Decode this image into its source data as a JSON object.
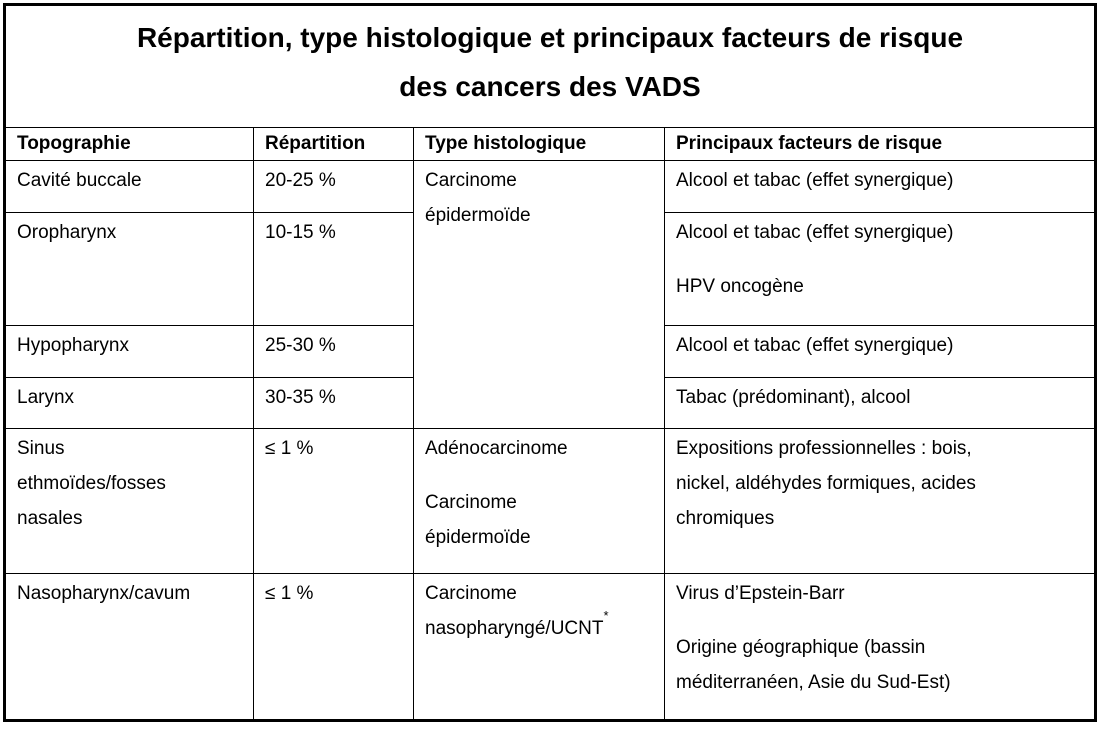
{
  "title": {
    "lines": [
      "Répartition, type histologique et principaux facteurs de risque",
      "des cancers des VADS"
    ]
  },
  "table": {
    "headers": [
      "Topographie",
      "Répartition",
      "Type histologique",
      "Principaux facteurs de risque"
    ],
    "rows": [
      {
        "topography": [
          [
            "Cavité buccale"
          ]
        ],
        "repartition": "20-25 %",
        "histology": [
          [
            "Carcinome",
            "épidermoïde"
          ]
        ],
        "risks": [
          [
            "Alcool et tabac (effet synergique)"
          ]
        ]
      },
      {
        "topography": [
          [
            "Oropharynx"
          ]
        ],
        "repartition": "10-15 %",
        "risks": [
          [
            "Alcool et tabac (effet synergique)"
          ],
          [
            "HPV oncogène"
          ]
        ]
      },
      {
        "topography": [
          [
            "Hypopharynx"
          ]
        ],
        "repartition": "25-30 %",
        "risks": [
          [
            "Alcool et tabac (effet synergique)"
          ]
        ]
      },
      {
        "topography": [
          [
            "Larynx"
          ]
        ],
        "repartition": "30-35 %",
        "risks": [
          [
            "Tabac (prédominant), alcool"
          ]
        ]
      },
      {
        "topography": [
          [
            "Sinus",
            "ethmoïdes/fosses",
            "nasales"
          ]
        ],
        "repartition": "≤ 1 %",
        "histology": [
          [
            "Adénocarcinome"
          ],
          [
            "Carcinome",
            "épidermoïde"
          ]
        ],
        "risks": [
          [
            "Expositions professionnelles : bois,",
            "nickel, aldéhydes formiques, acides",
            "chromiques"
          ]
        ]
      },
      {
        "topography": [
          [
            "Nasopharynx/cavum"
          ]
        ],
        "repartition": "≤ 1 %",
        "histology_line1": "Carcinome",
        "histology_line2": "nasopharyngé/UCNT",
        "histology_sup": "*",
        "risks": [
          [
            "Virus d’Epstein-Barr"
          ],
          [
            "Origine géographique (bassin",
            "méditerranéen, Asie du Sud-Est)"
          ]
        ]
      }
    ]
  }
}
